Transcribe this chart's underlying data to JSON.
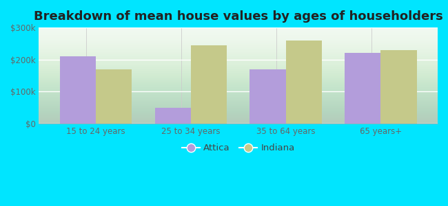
{
  "title": "Breakdown of mean house values by ages of householders",
  "categories": [
    "15 to 24 years",
    "25 to 34 years",
    "35 to 64 years",
    "65 years+"
  ],
  "attica_values": [
    210000,
    50000,
    170000,
    220000
  ],
  "indiana_values": [
    170000,
    245000,
    260000,
    230000
  ],
  "attica_color": "#b39ddb",
  "indiana_color": "#c5c98a",
  "outer_background": "#00e5ff",
  "ylim": [
    0,
    300000
  ],
  "yticks": [
    0,
    100000,
    200000,
    300000
  ],
  "ytick_labels": [
    "$0",
    "$100k",
    "$200k",
    "$300k"
  ],
  "legend_attica": "Attica",
  "legend_indiana": "Indiana",
  "bar_width": 0.38,
  "title_fontsize": 13,
  "tick_fontsize": 8.5,
  "legend_fontsize": 9.5
}
